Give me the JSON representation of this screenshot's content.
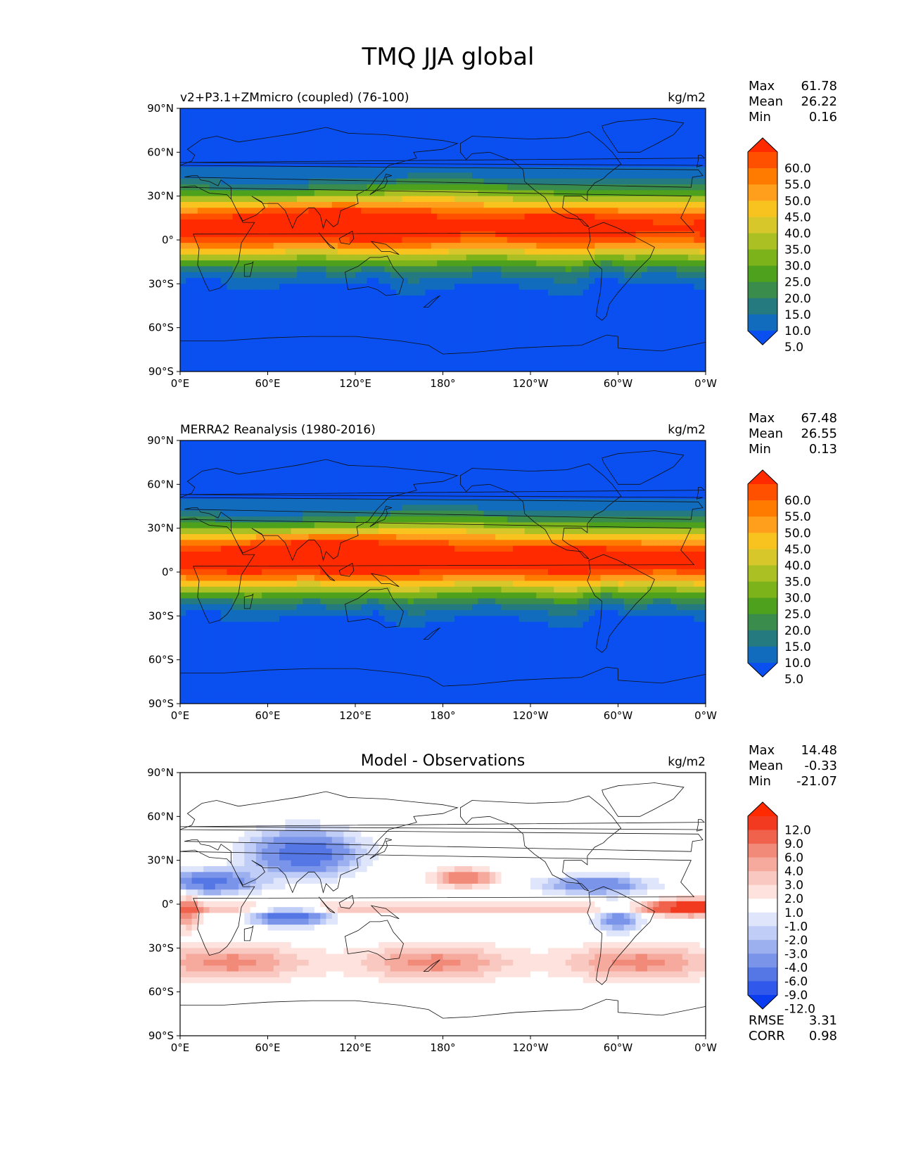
{
  "figure": {
    "title": "TMQ JJA global"
  },
  "chart_data": [
    {
      "type": "heatmap",
      "id": "model",
      "title": "v2+P3.1+ZMmicro (coupled) (76-100)",
      "title_center": "",
      "units": "kg/m2",
      "stats": [
        {
          "label": "Max",
          "value": "61.78"
        },
        {
          "label": "Mean",
          "value": "26.22"
        },
        {
          "label": "Min",
          "value": "0.16"
        }
      ],
      "xticks": [
        "0°E",
        "60°E",
        "120°E",
        "180°",
        "120°W",
        "60°W",
        "0°W"
      ],
      "yticks": [
        "90°N",
        "60°N",
        "30°N",
        "0°",
        "30°S",
        "60°S",
        "90°S"
      ],
      "colorbar": {
        "levels": [
          "60.0",
          "55.0",
          "50.0",
          "45.0",
          "40.0",
          "35.0",
          "30.0",
          "25.0",
          "20.0",
          "15.0",
          "10.0",
          "5.0"
        ],
        "colors": [
          "#ff2a00",
          "#ff5000",
          "#ff7b00",
          "#ff9f1c",
          "#f9c31f",
          "#d8c72a",
          "#aac023",
          "#7cb21a",
          "#4ea11c",
          "#3a8c4d",
          "#257a80",
          "#126cbd",
          "#0a4ff0"
        ]
      },
      "rmse": null
    },
    {
      "type": "heatmap",
      "id": "obs",
      "title": "MERRA2 Reanalysis (1980-2016)",
      "title_center": "",
      "units": "kg/m2",
      "stats": [
        {
          "label": "Max",
          "value": "67.48"
        },
        {
          "label": "Mean",
          "value": "26.55"
        },
        {
          "label": "Min",
          "value": "0.13"
        }
      ],
      "xticks": [
        "0°E",
        "60°E",
        "120°E",
        "180°",
        "120°W",
        "60°W",
        "0°W"
      ],
      "yticks": [
        "90°N",
        "60°N",
        "30°N",
        "0°",
        "30°S",
        "60°S",
        "90°S"
      ],
      "colorbar": {
        "levels": [
          "60.0",
          "55.0",
          "50.0",
          "45.0",
          "40.0",
          "35.0",
          "30.0",
          "25.0",
          "20.0",
          "15.0",
          "10.0",
          "5.0"
        ],
        "colors": [
          "#ff2a00",
          "#ff5000",
          "#ff7b00",
          "#ff9f1c",
          "#f9c31f",
          "#d8c72a",
          "#aac023",
          "#7cb21a",
          "#4ea11c",
          "#3a8c4d",
          "#257a80",
          "#126cbd",
          "#0a4ff0"
        ]
      },
      "rmse": null
    },
    {
      "type": "heatmap",
      "id": "diff",
      "title": "",
      "title_center": "Model - Observations",
      "units": "kg/m2",
      "stats": [
        {
          "label": "Max",
          "value": "14.48"
        },
        {
          "label": "Mean",
          "value": "-0.33"
        },
        {
          "label": "Min",
          "value": "-21.07"
        }
      ],
      "xticks": [
        "0°E",
        "60°E",
        "120°E",
        "180°",
        "120°W",
        "60°W",
        "0°W"
      ],
      "yticks": [
        "90°N",
        "60°N",
        "30°N",
        "0°",
        "30°S",
        "60°S",
        "90°S"
      ],
      "colorbar": {
        "levels": [
          "12.0",
          "9.0",
          "6.0",
          "4.0",
          "3.0",
          "2.0",
          "1.0",
          "-1.0",
          "-2.0",
          "-3.0",
          "-4.0",
          "-6.0",
          "-9.0",
          "-12.0"
        ],
        "colors": [
          "#ff2a00",
          "#f23a21",
          "#f0624c",
          "#f28a7a",
          "#f6aa9e",
          "#f9c8c0",
          "#fde2de",
          "#ffffff",
          "#dfe5fa",
          "#c0cdf6",
          "#9cb0f0",
          "#7a94ea",
          "#5577e6",
          "#3058ea",
          "#0a3cf0"
        ]
      },
      "rmse": [
        {
          "label": "RMSE",
          "value": "3.31"
        },
        {
          "label": "CORR",
          "value": "0.98"
        }
      ]
    }
  ]
}
